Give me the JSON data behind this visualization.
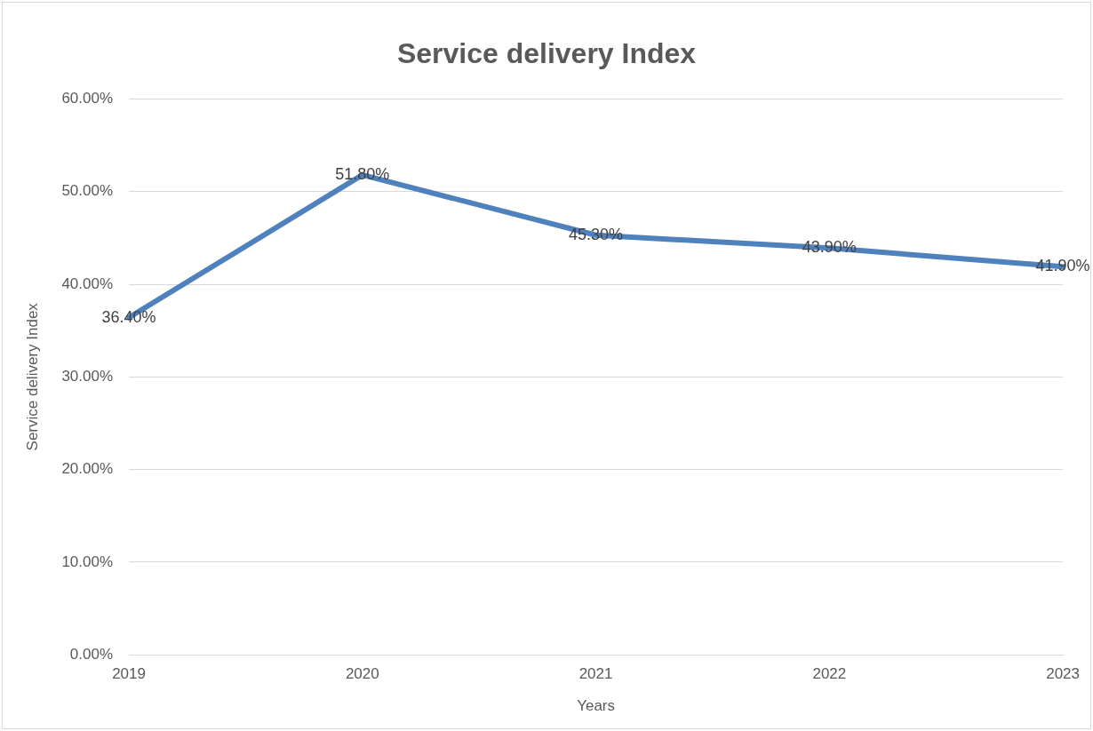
{
  "chart_data": {
    "type": "line",
    "title": "Service delivery Index",
    "xlabel": "Years",
    "ylabel": "Service delivery Index",
    "categories": [
      "2019",
      "2020",
      "2021",
      "2022",
      "2023"
    ],
    "series": [
      {
        "color": "#4f81bd",
        "values": [
          36.4,
          51.8,
          45.3,
          43.9,
          41.9
        ]
      }
    ],
    "value_labels": [
      "36.40%",
      "51.80%",
      "45.30%",
      "43.90%",
      "41.90%"
    ],
    "ylim": [
      0,
      60
    ],
    "yticks": [
      {
        "value": 0,
        "label": "0.00%"
      },
      {
        "value": 10,
        "label": "10.00%"
      },
      {
        "value": 20,
        "label": "20.00%"
      },
      {
        "value": 30,
        "label": "30.00%"
      },
      {
        "value": 40,
        "label": "40.00%"
      },
      {
        "value": 50,
        "label": "50.00%"
      },
      {
        "value": 60,
        "label": "60.00%"
      }
    ],
    "grid": "y",
    "legend": false,
    "marker": "none",
    "line_style": "solid"
  }
}
